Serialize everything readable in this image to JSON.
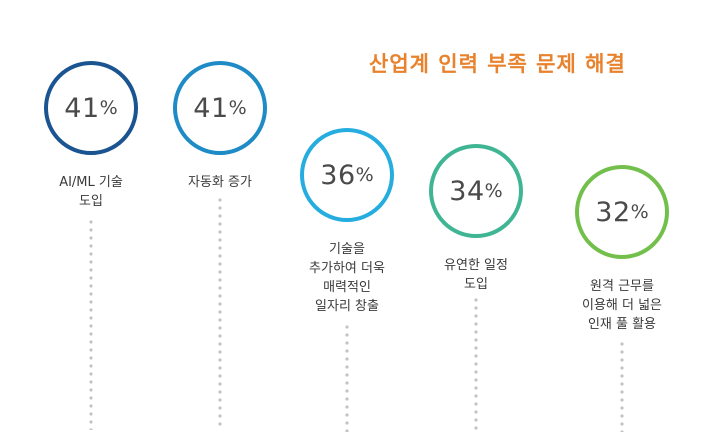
{
  "title": "산업계 인력 부족 문제 해결",
  "accent_color": "#e8822d",
  "chart_data": {
    "type": "bar",
    "title": "산업계 인력 부족 문제 해결",
    "unit": "%",
    "categories": [
      "AI/ML 기술 도입",
      "자동화 증가",
      "기술을 추가하여 더욱 매력적인 일자리 창출",
      "유연한 일정 도입",
      "원격 근무를 이용해 더 넓은 인재 풀 활용"
    ],
    "values": [
      41,
      41,
      36,
      34,
      32
    ],
    "items": [
      {
        "value": "41",
        "unit": "%",
        "label_lines": [
          "AI/ML 기술",
          "도입"
        ],
        "color": "#1a5491"
      },
      {
        "value": "41",
        "unit": "%",
        "label_lines": [
          "자동화 증가"
        ],
        "color": "#1e8ac6"
      },
      {
        "value": "36",
        "unit": "%",
        "label_lines": [
          "기술을",
          "추가하여 더욱",
          "매력적인",
          "일자리 창출"
        ],
        "color": "#26ade0"
      },
      {
        "value": "34",
        "unit": "%",
        "label_lines": [
          "유연한 일정",
          "도입"
        ],
        "color": "#3fb594"
      },
      {
        "value": "32",
        "unit": "%",
        "label_lines": [
          "원격 근무를",
          "이용해 더 넓은",
          "인재 풀 활용"
        ],
        "color": "#73bf4b"
      }
    ]
  }
}
